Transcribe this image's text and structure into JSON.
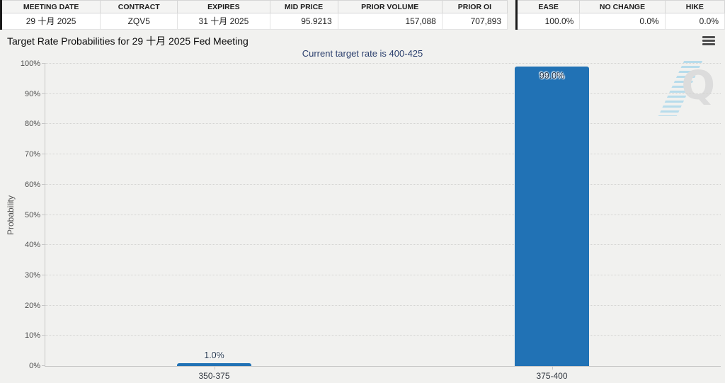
{
  "table": {
    "left": {
      "headers": [
        "MEETING DATE",
        "CONTRACT",
        "EXPIRES",
        "MID PRICE",
        "PRIOR VOLUME",
        "PRIOR OI"
      ],
      "values": [
        "29 十月 2025",
        "ZQV5",
        "31 十月 2025",
        "95.9213",
        "157,088",
        "707,893"
      ]
    },
    "right": {
      "headers": [
        "EASE",
        "NO CHANGE",
        "HIKE"
      ],
      "values": [
        "100.0%",
        "0.0%",
        "0.0%"
      ]
    }
  },
  "header": {
    "title": "Target Rate Probabilities for 29 十月 2025 Fed Meeting",
    "menu_icon": "hamburger-menu-icon"
  },
  "chart_data": {
    "type": "bar",
    "title": "Target Rate Probabilities for 29 十月 2025 Fed Meeting",
    "subtitle": "Current target rate is 400-425",
    "categories": [
      "350-375",
      "375-400"
    ],
    "values": [
      1.0,
      99.0
    ],
    "value_labels": [
      "1.0%",
      "99.0%"
    ],
    "xlabel": "",
    "ylabel": "Probability",
    "ylim": [
      0,
      100
    ],
    "ytick_step": 10,
    "ytick_labels": [
      "0%",
      "10%",
      "20%",
      "30%",
      "40%",
      "50%",
      "60%",
      "70%",
      "80%",
      "90%",
      "100%"
    ],
    "grid": "horizontal-dotted",
    "legend": "none",
    "bar_color": "#2172b5",
    "subtitle_color": "#2b3f6d",
    "watermark_letter": "Q"
  }
}
